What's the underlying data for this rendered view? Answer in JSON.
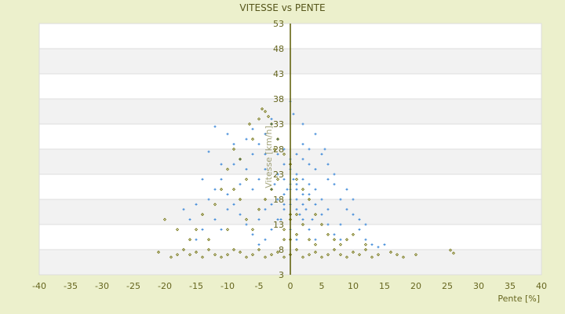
{
  "chart_data": {
    "type": "scatter",
    "title": "VITESSE vs PENTE",
    "xlabel": "Pente [%]",
    "ylabel": "Vitesse [km/h]",
    "xlim": [
      -40,
      40
    ],
    "ylim": [
      3,
      53
    ],
    "xticks": [
      "-40",
      "-35",
      "-30",
      "-25",
      "-20",
      "-15",
      "-10",
      "-5",
      "0",
      "5",
      "10",
      "15",
      "20",
      "25",
      "30",
      "35",
      "40"
    ],
    "yticks": [
      "53",
      "48",
      "43",
      "38",
      "33",
      "28",
      "23",
      "18",
      "13",
      "8",
      "3"
    ],
    "grid": "horizontal alternating bands",
    "series": [
      {
        "color": "#3a86d8",
        "marker": "+",
        "points": [
          [
            -12,
            32.5
          ],
          [
            -10,
            31
          ],
          [
            -9,
            29
          ],
          [
            -13,
            27.5
          ],
          [
            -11,
            25
          ],
          [
            -8,
            26
          ],
          [
            -7,
            24
          ],
          [
            -6,
            27
          ],
          [
            -5,
            29
          ],
          [
            -4,
            31
          ],
          [
            -3,
            33
          ],
          [
            -2,
            30
          ],
          [
            -1,
            28
          ],
          [
            0,
            26
          ],
          [
            1,
            27
          ],
          [
            2,
            29
          ],
          [
            3,
            25
          ],
          [
            4,
            24
          ],
          [
            5,
            27
          ],
          [
            5.5,
            28
          ],
          [
            6,
            22
          ],
          [
            7,
            21
          ],
          [
            8,
            18
          ],
          [
            9,
            16
          ],
          [
            10,
            15
          ],
          [
            11,
            12
          ],
          [
            12,
            10
          ],
          [
            13,
            9
          ],
          [
            14,
            8.5
          ],
          [
            -14,
            12
          ],
          [
            -15,
            10
          ],
          [
            -16,
            14
          ],
          [
            -17,
            16
          ],
          [
            -13,
            18
          ],
          [
            -12,
            20
          ],
          [
            -11,
            22
          ],
          [
            -10,
            19
          ],
          [
            -9,
            17
          ],
          [
            -8,
            15
          ],
          [
            -7,
            13
          ],
          [
            -6,
            11
          ],
          [
            -5,
            9
          ],
          [
            -4,
            10
          ],
          [
            -3,
            12
          ],
          [
            -2,
            14
          ],
          [
            -1,
            16
          ],
          [
            0,
            18
          ],
          [
            1,
            20
          ],
          [
            2,
            22
          ],
          [
            3,
            19
          ],
          [
            4,
            17
          ],
          [
            5,
            15
          ],
          [
            6,
            13
          ],
          [
            7,
            11
          ],
          [
            8,
            10
          ],
          [
            -6,
            20
          ],
          [
            -5,
            22
          ],
          [
            -4,
            24
          ],
          [
            -3,
            20
          ],
          [
            -2,
            18
          ],
          [
            -1,
            22
          ],
          [
            0,
            24
          ],
          [
            1,
            16
          ],
          [
            2,
            14
          ],
          [
            3,
            12
          ],
          [
            4,
            10
          ],
          [
            0,
            12
          ],
          [
            1,
            10
          ],
          [
            -1,
            19
          ],
          [
            0,
            21
          ],
          [
            1,
            23
          ],
          [
            2,
            17
          ],
          [
            -2,
            23
          ],
          [
            -3,
            17
          ],
          [
            3,
            21
          ],
          [
            4,
            20
          ],
          [
            -4,
            16
          ],
          [
            5,
            18
          ],
          [
            -5,
            14
          ],
          [
            6,
            16
          ],
          [
            2,
            19
          ],
          [
            1,
            18
          ],
          [
            0,
            17
          ],
          [
            -1,
            17
          ],
          [
            0,
            20
          ],
          [
            1,
            21
          ],
          [
            0.5,
            22
          ],
          [
            -0.5,
            20
          ],
          [
            1.5,
            15
          ],
          [
            2.5,
            16
          ],
          [
            -1.5,
            14
          ],
          [
            3.5,
            14
          ],
          [
            -2.5,
            21
          ],
          [
            0,
            37.5
          ],
          [
            0.5,
            35
          ],
          [
            2,
            33
          ],
          [
            -3,
            34
          ],
          [
            4,
            31
          ],
          [
            -7,
            30
          ],
          [
            -9,
            25
          ],
          [
            10,
            18
          ],
          [
            9,
            20
          ],
          [
            7,
            23
          ],
          [
            -8,
            21
          ],
          [
            -10,
            16
          ],
          [
            -12,
            14
          ],
          [
            8,
            13
          ],
          [
            11,
            14
          ],
          [
            -14,
            22
          ],
          [
            6,
            25
          ],
          [
            -6,
            32
          ],
          [
            3,
            28
          ],
          [
            -1,
            25
          ],
          [
            2,
            26
          ],
          [
            -2,
            27
          ],
          [
            -4,
            27
          ],
          [
            12,
            13
          ],
          [
            -11,
            12
          ],
          [
            -15,
            17
          ],
          [
            15,
            9
          ]
        ]
      },
      {
        "color": "#6b6b00",
        "marker": "diamond",
        "points": [
          [
            -21,
            7.5
          ],
          [
            -19,
            6.5
          ],
          [
            -18,
            7
          ],
          [
            -17,
            8
          ],
          [
            -16,
            7
          ],
          [
            -15,
            7.5
          ],
          [
            -14,
            6.5
          ],
          [
            -13,
            8
          ],
          [
            -12,
            7
          ],
          [
            -11,
            6.5
          ],
          [
            -10,
            7
          ],
          [
            -9,
            8
          ],
          [
            -8,
            7.5
          ],
          [
            -7,
            6.5
          ],
          [
            -6,
            7
          ],
          [
            -5,
            8
          ],
          [
            -4,
            6.5
          ],
          [
            -3,
            7
          ],
          [
            -2,
            7.5
          ],
          [
            -1,
            6.5
          ],
          [
            0,
            7
          ],
          [
            1,
            8
          ],
          [
            2,
            6.5
          ],
          [
            3,
            7
          ],
          [
            4,
            7.5
          ],
          [
            5,
            6.5
          ],
          [
            6,
            7
          ],
          [
            7,
            8
          ],
          [
            8,
            7
          ],
          [
            9,
            6.5
          ],
          [
            10,
            7.5
          ],
          [
            11,
            7
          ],
          [
            12,
            8
          ],
          [
            13,
            6.5
          ],
          [
            14,
            7
          ],
          [
            16,
            7.5
          ],
          [
            17,
            7
          ],
          [
            18,
            6.5
          ],
          [
            20,
            7
          ],
          [
            25.5,
            7.9
          ],
          [
            26,
            7.3
          ],
          [
            -20,
            14
          ],
          [
            -18,
            12
          ],
          [
            -16,
            10
          ],
          [
            -14,
            15
          ],
          [
            -12,
            17
          ],
          [
            -11,
            20
          ],
          [
            -10,
            24
          ],
          [
            -9,
            28
          ],
          [
            -8,
            26
          ],
          [
            -7,
            22
          ],
          [
            -6,
            30
          ],
          [
            -5,
            34
          ],
          [
            -4,
            35.5
          ],
          [
            -3,
            33
          ],
          [
            -2,
            30
          ],
          [
            -1,
            27
          ],
          [
            0,
            25
          ],
          [
            1,
            22
          ],
          [
            2,
            20
          ],
          [
            3,
            18
          ],
          [
            4,
            15
          ],
          [
            5,
            13
          ],
          [
            6,
            11
          ],
          [
            7,
            10
          ],
          [
            8,
            9
          ],
          [
            9,
            10
          ],
          [
            10,
            11
          ],
          [
            12,
            9
          ],
          [
            -7,
            14
          ],
          [
            -6,
            12
          ],
          [
            -5,
            16
          ],
          [
            -4,
            18
          ],
          [
            -3,
            20
          ],
          [
            -2,
            22
          ],
          [
            -1,
            12
          ],
          [
            0,
            14
          ],
          [
            1,
            11
          ],
          [
            2,
            13
          ],
          [
            3,
            10
          ],
          [
            4,
            9
          ],
          [
            -8,
            18
          ],
          [
            -9,
            20
          ],
          [
            -10,
            12
          ],
          [
            -13,
            10
          ],
          [
            -15,
            12
          ],
          [
            -4.5,
            36
          ],
          [
            -3.5,
            34.5
          ],
          [
            -6.5,
            33
          ],
          [
            -2.5,
            28
          ],
          [
            0,
            15
          ],
          [
            0,
            10
          ],
          [
            -1,
            10
          ],
          [
            1,
            15
          ]
        ]
      }
    ]
  }
}
